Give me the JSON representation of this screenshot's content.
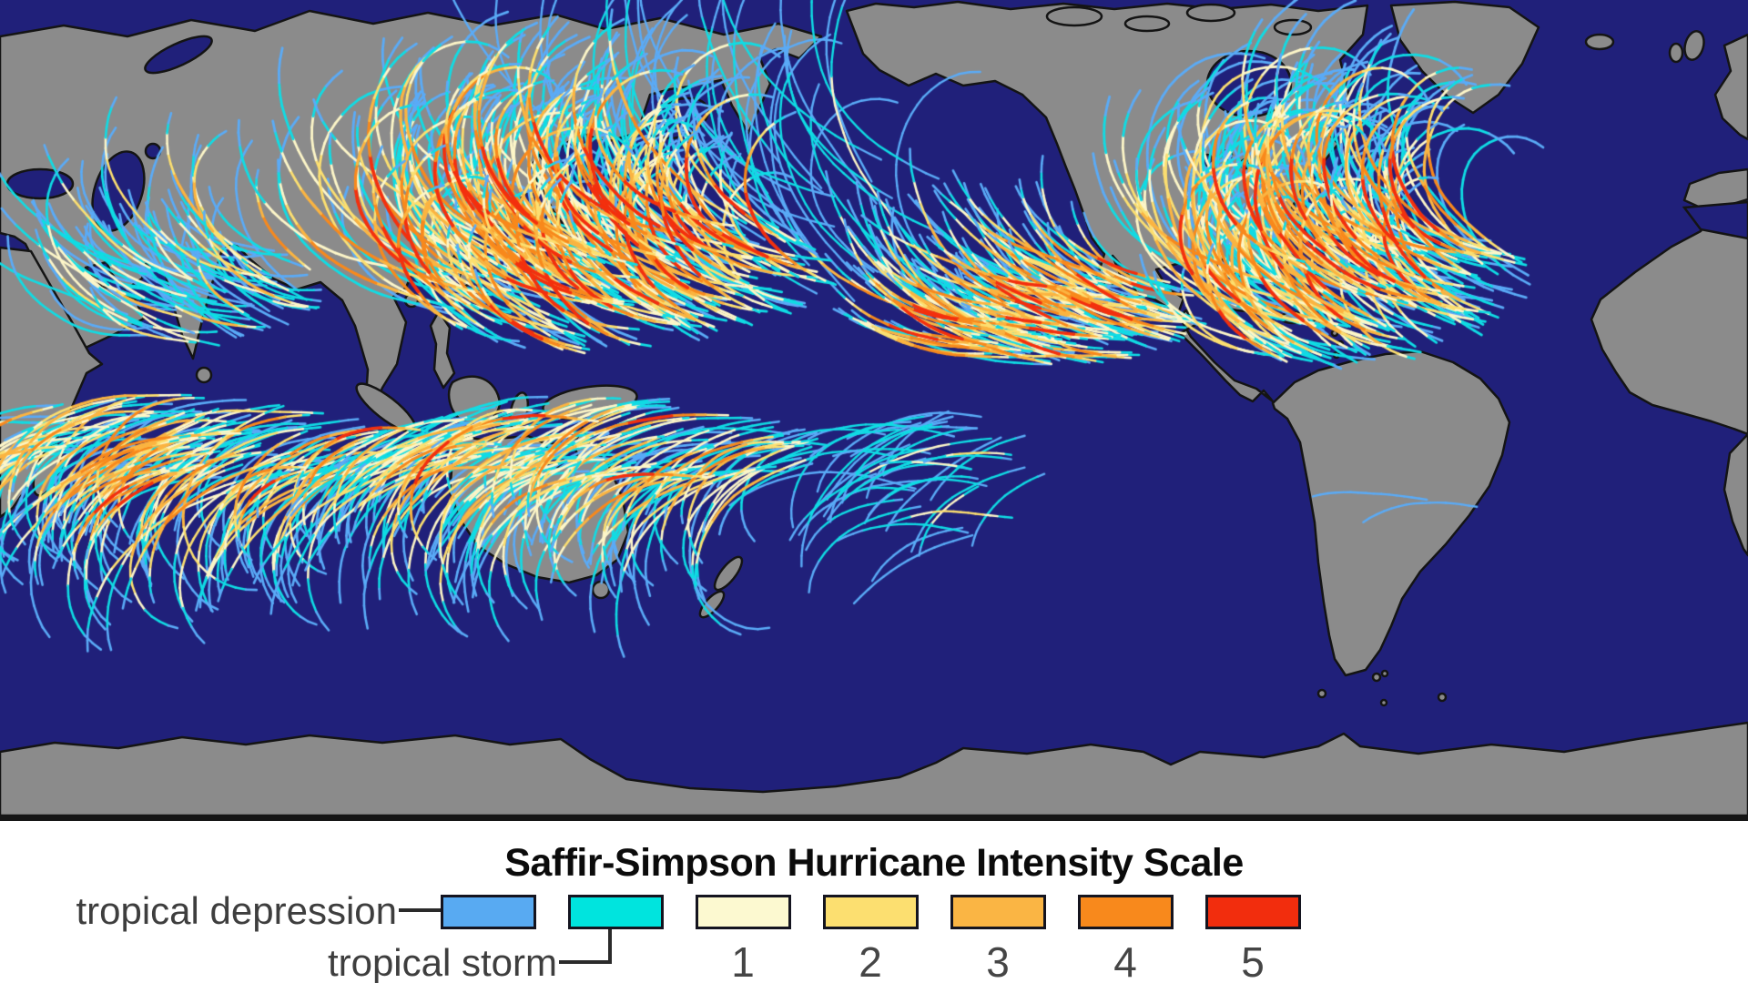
{
  "legend": {
    "title": "Saffir-Simpson Hurricane Intensity Scale",
    "labels": {
      "depression": "tropical depression",
      "storm": "tropical storm"
    },
    "scale": [
      {
        "id": "tropical-depression",
        "number": "",
        "color": "#58aaf2"
      },
      {
        "id": "tropical-storm",
        "number": "",
        "color": "#00e4de"
      },
      {
        "id": "category-1",
        "number": "1",
        "color": "#fcf9d0"
      },
      {
        "id": "category-2",
        "number": "2",
        "color": "#fcdf70"
      },
      {
        "id": "category-3",
        "number": "3",
        "color": "#fab544"
      },
      {
        "id": "category-4",
        "number": "4",
        "color": "#f8891c"
      },
      {
        "id": "category-5",
        "number": "5",
        "color": "#f22d0d"
      }
    ]
  },
  "map": {
    "ocean_color": "#20207a",
    "land_color": "#8b8b8b",
    "coast_color": "#141414",
    "border_color": "#161616",
    "track_colors": [
      "#5aabf7",
      "#10dce4",
      "#fdf6c8",
      "#fcdf70",
      "#fbb441",
      "#f8891c",
      "#f3300e"
    ],
    "basins": [
      {
        "name": "central-pacific-sparse",
        "seed": 17,
        "n": 45,
        "spawn": [
          880,
          250,
          190,
          95,
          0
        ],
        "heading": 215,
        "hJit": 55,
        "curve": 3.6,
        "steps": [
          14,
          28
        ],
        "len": [
          10,
          16
        ],
        "caps": [
          0.5,
          0.45,
          0.05,
          0,
          0,
          0,
          0
        ],
        "width": 2.4
      },
      {
        "name": "north-indian",
        "seed": 11,
        "n": 85,
        "spawn": [
          245,
          325,
          115,
          55,
          -5
        ],
        "heading": 195,
        "hJit": 45,
        "curve": 3.4,
        "steps": [
          10,
          22
        ],
        "len": [
          7,
          12
        ],
        "caps": [
          0.2,
          0.4,
          0.15,
          0.12,
          0.08,
          0.05,
          0
        ],
        "width": 2.6
      },
      {
        "name": "east-pacific",
        "seed": 13,
        "n": 150,
        "spawn": [
          1205,
          355,
          130,
          45,
          -8
        ],
        "heading": 190,
        "hJit": 22,
        "curve": 2.2,
        "steps": [
          12,
          24
        ],
        "len": [
          8,
          13
        ],
        "caps": [
          0.1,
          0.22,
          0.16,
          0.16,
          0.16,
          0.14,
          0.06
        ],
        "width": 2.6
      },
      {
        "name": "south-pacific-east",
        "seed": 31,
        "n": 40,
        "spawn": [
          1060,
          520,
          110,
          70,
          10
        ],
        "heading": 175,
        "hJit": 44,
        "curve": -3.2,
        "steps": [
          10,
          20
        ],
        "len": [
          8,
          12
        ],
        "caps": [
          0.34,
          0.44,
          0.14,
          0.08,
          0,
          0,
          0
        ],
        "width": 2.4
      },
      {
        "name": "south-atlantic",
        "seed": 37,
        "n": 2,
        "spawn": [
          1605,
          550,
          38,
          10,
          0
        ],
        "heading": 185,
        "hJit": 20,
        "curve": -2.8,
        "steps": [
          12,
          16
        ],
        "len": [
          8,
          10
        ],
        "caps": [
          0.5,
          0.5,
          0,
          0,
          0,
          0,
          0
        ],
        "width": 2.4
      },
      {
        "name": "south-indian",
        "seed": 23,
        "n": 170,
        "spawn": [
          240,
          480,
          210,
          45,
          4
        ],
        "heading": 172,
        "hJit": 26,
        "curve": -4.2,
        "steps": [
          14,
          26
        ],
        "len": [
          8,
          13
        ],
        "caps": [
          0.1,
          0.26,
          0.16,
          0.18,
          0.16,
          0.12,
          0.02
        ],
        "width": 2.6
      },
      {
        "name": "australia-south-pacific",
        "seed": 29,
        "n": 165,
        "spawn": [
          690,
          480,
          225,
          45,
          3
        ],
        "heading": 174,
        "hJit": 28,
        "curve": -4.0,
        "steps": [
          14,
          26
        ],
        "len": [
          8,
          13
        ],
        "caps": [
          0.12,
          0.28,
          0.16,
          0.18,
          0.14,
          0.1,
          0.02
        ],
        "width": 2.6
      },
      {
        "name": "north-atlantic",
        "seed": 5,
        "n": 210,
        "spawn": [
          1520,
          330,
          170,
          70,
          -10
        ],
        "heading": 200,
        "hJit": 34,
        "curve": 4.8,
        "steps": [
          16,
          32
        ],
        "len": [
          9,
          14
        ],
        "caps": [
          0.08,
          0.2,
          0.14,
          0.14,
          0.16,
          0.16,
          0.12
        ],
        "width": 2.8
      },
      {
        "name": "west-pacific",
        "seed": 7,
        "n": 240,
        "spawn": [
          700,
          315,
          230,
          70,
          -6
        ],
        "heading": 197,
        "hJit": 28,
        "curve": 4.6,
        "steps": [
          16,
          30
        ],
        "len": [
          9,
          14
        ],
        "caps": [
          0.06,
          0.16,
          0.12,
          0.12,
          0.14,
          0.18,
          0.22
        ],
        "width": 2.8
      }
    ]
  }
}
